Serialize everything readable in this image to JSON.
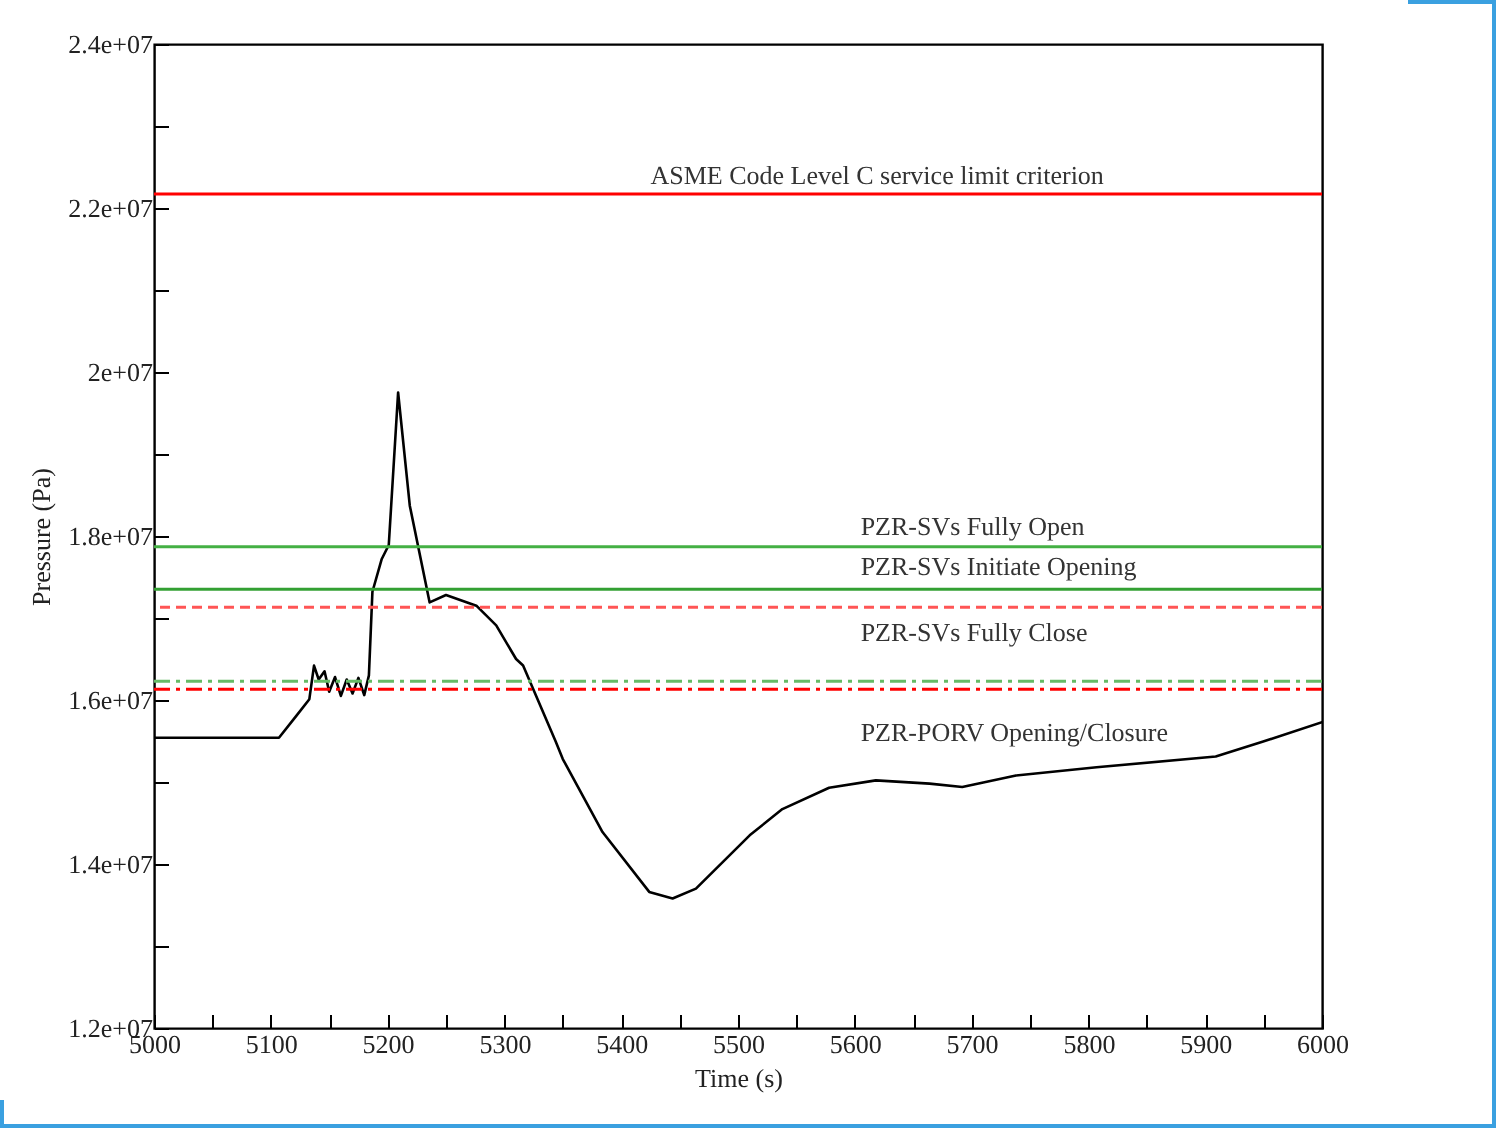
{
  "chart_data": {
    "type": "line",
    "xlabel": "Time (s)",
    "ylabel": "Pressure (Pa)",
    "xlim": [
      5000,
      6000
    ],
    "ylim": [
      12000000,
      24000000
    ],
    "xticks": [
      5000,
      {
        "value": 5050,
        "label": null
      },
      5100,
      {
        "value": 5150,
        "label": null
      },
      5200,
      {
        "value": 5250,
        "label": null
      },
      5300,
      {
        "value": 5350,
        "label": null
      },
      5400,
      {
        "value": 5450,
        "label": null
      },
      5500,
      {
        "value": 5550,
        "label": null
      },
      5600,
      {
        "value": 5650,
        "label": null
      },
      5700,
      {
        "value": 5750,
        "label": null
      },
      5800,
      {
        "value": 5850,
        "label": null
      },
      5900,
      {
        "value": 5950,
        "label": null
      },
      6000
    ],
    "yticks": [
      {
        "value": 12000000,
        "label": "1.2e+07"
      },
      {
        "value": 13000000,
        "label": null
      },
      {
        "value": 14000000,
        "label": "1.4e+07"
      },
      {
        "value": 15000000,
        "label": null
      },
      {
        "value": 16000000,
        "label": "1.6e+07"
      },
      {
        "value": 17000000,
        "label": null
      },
      {
        "value": 18000000,
        "label": "1.8e+07"
      },
      {
        "value": 19000000,
        "label": null
      },
      {
        "value": 20000000,
        "label": "2e+07"
      },
      {
        "value": 21000000,
        "label": null
      },
      {
        "value": 22000000,
        "label": "2.2e+07"
      },
      {
        "value": 23000000,
        "label": null
      },
      {
        "value": 24000000,
        "label": "2.4e+07"
      }
    ],
    "grid": false,
    "marker": "none",
    "series": [
      {
        "color": "#000000",
        "line_style": "solid",
        "x": [
          5000,
          5107,
          5122,
          5133,
          5137,
          5141,
          5146,
          5150,
          5155,
          5160,
          5165,
          5170,
          5175,
          5180,
          5184,
          5187,
          5195,
          5201,
          5209,
          5219,
          5236,
          5250,
          5276,
          5293,
          5310,
          5316,
          5344,
          5350,
          5384,
          5424,
          5444,
          5464,
          5510,
          5538,
          5578,
          5618,
          5664,
          5692,
          5738,
          5807,
          5909,
          5949,
          6000
        ],
        "values": [
          15540000,
          15540000,
          15810000,
          16010000,
          16420000,
          16250000,
          16350000,
          16100000,
          16280000,
          16050000,
          16250000,
          16080000,
          16270000,
          16060000,
          16300000,
          17320000,
          17720000,
          17890000,
          19750000,
          18370000,
          17190000,
          17280000,
          17150000,
          16910000,
          16500000,
          16420000,
          15490000,
          15280000,
          14390000,
          13660000,
          13580000,
          13700000,
          14350000,
          14670000,
          14930000,
          15020000,
          14980000,
          14940000,
          15080000,
          15180000,
          15310000,
          15490000,
          15730000
        ]
      }
    ],
    "ref_lines": [
      {
        "axis": "y",
        "value": 22170000,
        "label": "ASME Code Level C service limit criterion",
        "color": "#ff0000",
        "line_style": "solid"
      },
      {
        "axis": "y",
        "value": 17870000,
        "label": "PZR-SVs Fully Open",
        "color": "#44b044",
        "line_style": "solid"
      },
      {
        "axis": "y",
        "value": 17350000,
        "label": "PZR-SVs Initiate Opening",
        "color": "#33a033",
        "line_style": "solid"
      },
      {
        "axis": "y",
        "value": 17130000,
        "label": "PZR-SVs  Fully Close",
        "color": "#ff5555",
        "line_style": "dashed"
      },
      {
        "axis": "y",
        "value": 16230000,
        "color": "#66bb66",
        "line_style": "dashdot"
      },
      {
        "axis": "y",
        "value": 16130000,
        "label": "PZR-PORV Opening/Closure",
        "color": "#ff0000",
        "line_style": "dashdot"
      }
    ]
  }
}
